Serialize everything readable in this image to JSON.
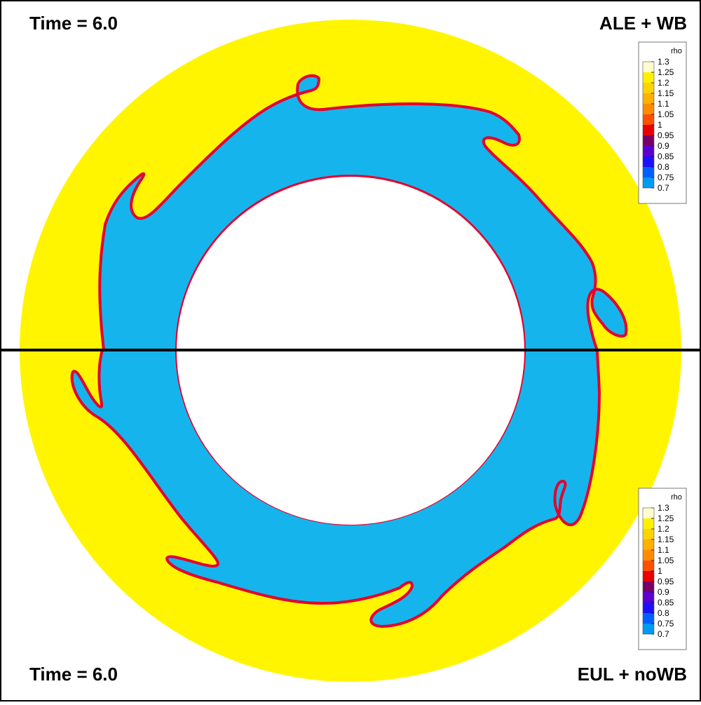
{
  "panels": {
    "top": {
      "time_label": "Time = 6.0",
      "method_label": "ALE + WB"
    },
    "bottom": {
      "time_label": "Time = 6.0",
      "method_label": "EUL + noWB"
    }
  },
  "legend": {
    "variable": "rho",
    "levels": [
      "1.3",
      "1.25",
      "1.2",
      "1.15",
      "1.1",
      "1.05",
      "1",
      "0.95",
      "0.9",
      "0.85",
      "0.8",
      "0.75",
      "0.7"
    ],
    "colors": [
      "#fffdd0",
      "#fff000",
      "#ffd200",
      "#ffb000",
      "#ff8c00",
      "#ff5000",
      "#e80000",
      "#7a0066",
      "#5a00d0",
      "#1c10ff",
      "#0060ff",
      "#009af5",
      "#14d2f5"
    ]
  },
  "colors": {
    "outer_ring": "#fff500",
    "inner_region": "#16b4ec",
    "interface_red": "#e4002e",
    "interface_blue": "#1c10ff",
    "divider": "#000000"
  }
}
